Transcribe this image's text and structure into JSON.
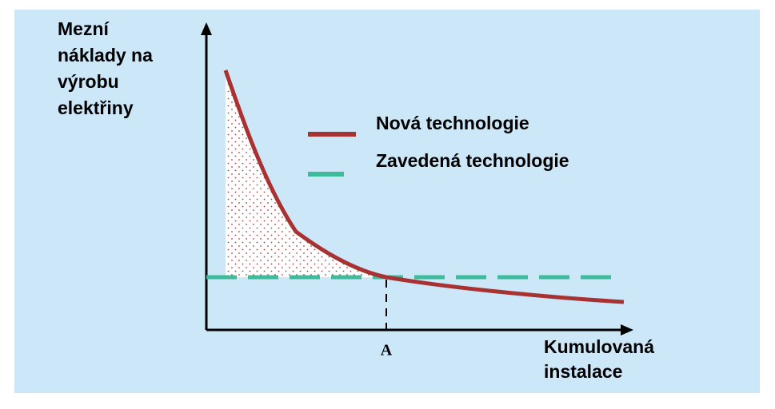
{
  "y_axis_label": [
    "Mezní",
    "náklady na",
    "výrobu",
    "elektřiny"
  ],
  "x_axis_label": [
    "Kumulovaná",
    "instalace"
  ],
  "legend": [
    {
      "label": "Nová technologie"
    },
    {
      "label": "Zavedená technologie"
    }
  ],
  "marker": "A"
}
